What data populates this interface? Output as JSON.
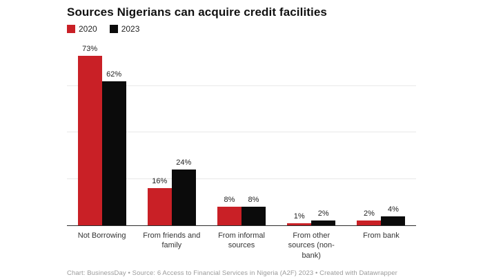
{
  "header": {
    "title": "Sources Nigerians can acquire credit facilities"
  },
  "chart_data": {
    "type": "bar",
    "title": "Sources Nigerians can acquire credit facilities",
    "categories": [
      "Not Borrowing",
      "From friends and family",
      "From informal sources",
      "From other sources (non-bank)",
      "From bank"
    ],
    "series": [
      {
        "name": "2020",
        "color": "#c92026",
        "values": [
          73,
          16,
          8,
          1,
          2
        ]
      },
      {
        "name": "2023",
        "color": "#0b0b0b",
        "values": [
          62,
          24,
          8,
          2,
          4
        ]
      }
    ],
    "value_suffix": "%",
    "xlabel": "",
    "ylabel": "",
    "ylim": [
      0,
      80
    ],
    "gridlines": [
      20,
      40,
      60
    ],
    "grid": "horizontal",
    "legend_position": "top-left"
  },
  "legend": {
    "items": [
      {
        "label": "2020",
        "color": "#c92026"
      },
      {
        "label": "2023",
        "color": "#0b0b0b"
      }
    ]
  },
  "footer": {
    "text": "Chart: BusinessDay • Source: 6 Access to Financial Services in Nigeria (A2F) 2023 • Created with Datawrapper"
  },
  "colors": {
    "grid": "#e8e8e8",
    "axis": "#2b2b2b",
    "value_label": "#222222",
    "category_label": "#333333",
    "footer_text": "#9b9b9b",
    "background": "#ffffff"
  }
}
